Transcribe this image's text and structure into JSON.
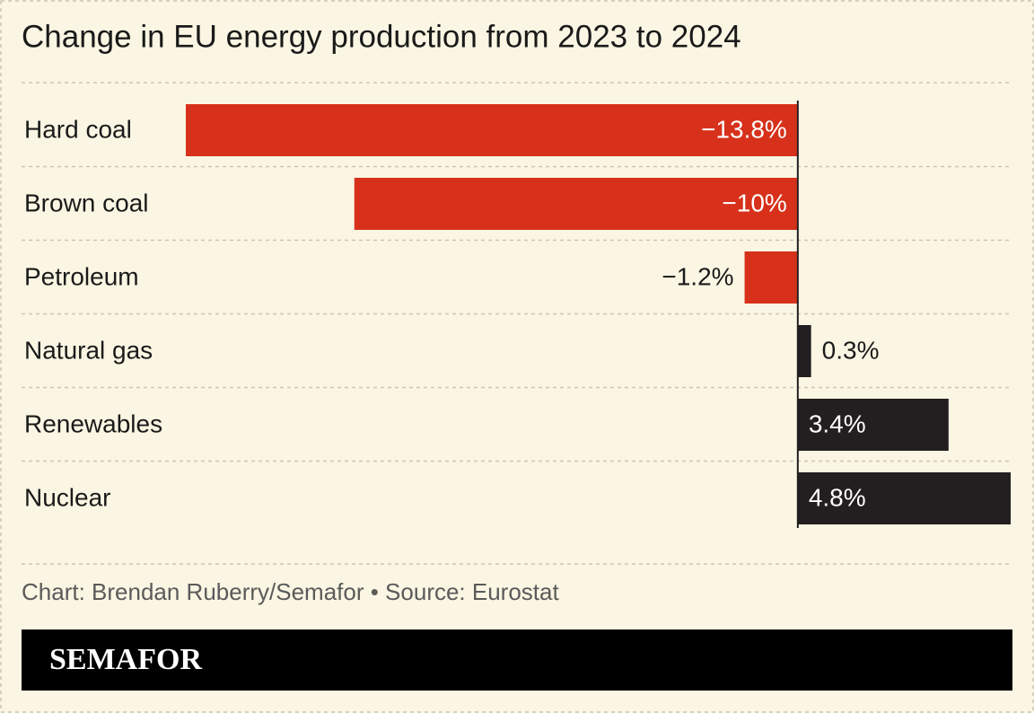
{
  "chart_data": {
    "type": "bar",
    "orientation": "horizontal",
    "title": "Change in EU energy production from 2023 to 2024",
    "categories": [
      "Hard coal",
      "Brown coal",
      "Petroleum",
      "Natural gas",
      "Renewables",
      "Nuclear"
    ],
    "values": [
      -13.8,
      -10,
      -1.2,
      0.3,
      3.4,
      4.8
    ],
    "value_labels": [
      "−13.8%",
      "−10%",
      "−1.2%",
      "0.3%",
      "3.4%",
      "4.8%"
    ],
    "color_negative": "#d7311b",
    "color_positive": "#231f20"
  },
  "footer": {
    "source": "Chart: Brendan Ruberry/Semafor • Source: Eurostat",
    "brand": "SEMAFOR"
  }
}
